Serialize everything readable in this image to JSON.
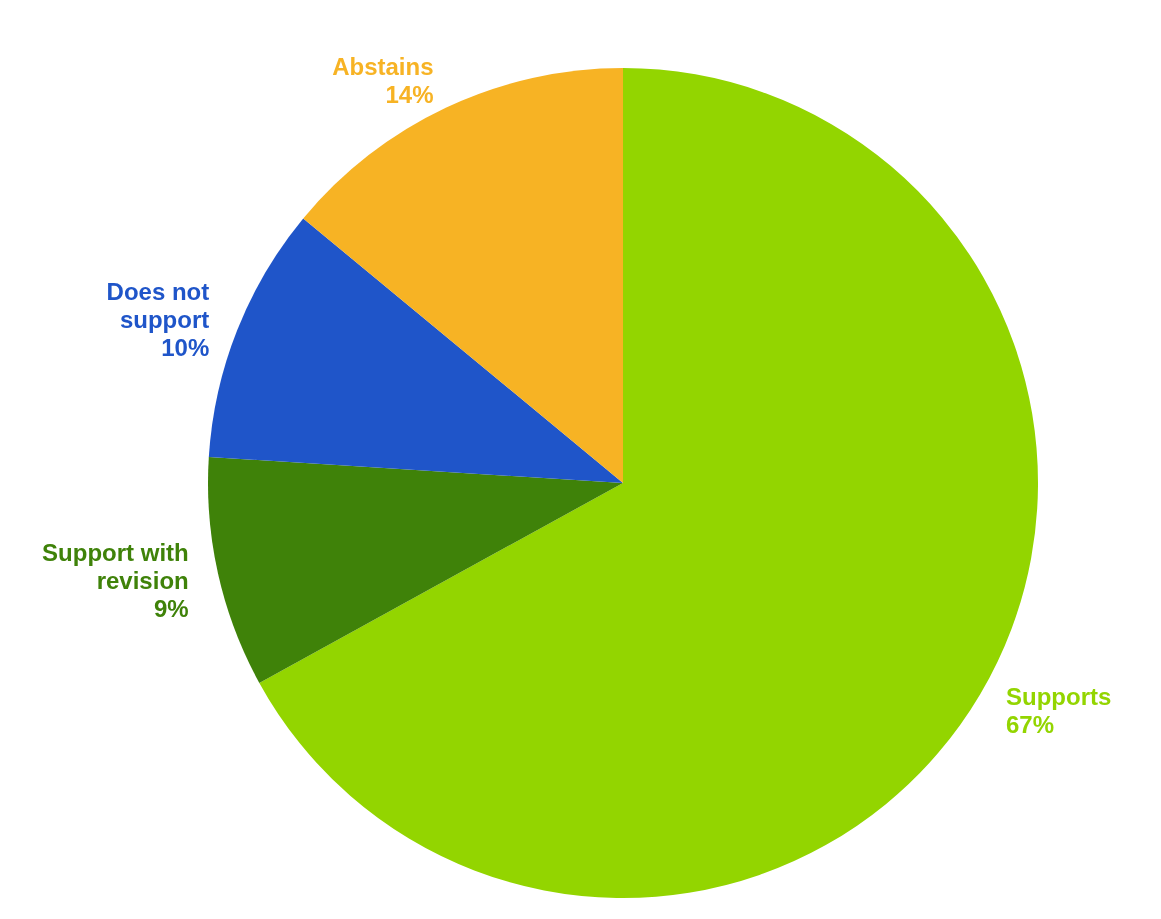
{
  "chart_data": {
    "type": "pie",
    "categories": [
      "Supports",
      "Support with revision",
      "Does not support",
      "Abstains"
    ],
    "values": [
      67,
      9,
      10,
      14
    ],
    "colors": [
      "#93d500",
      "#3f8209",
      "#1f55c9",
      "#f7b324"
    ],
    "value_labels": [
      "67%",
      "9%",
      "10%",
      "14%"
    ],
    "legend": false
  }
}
